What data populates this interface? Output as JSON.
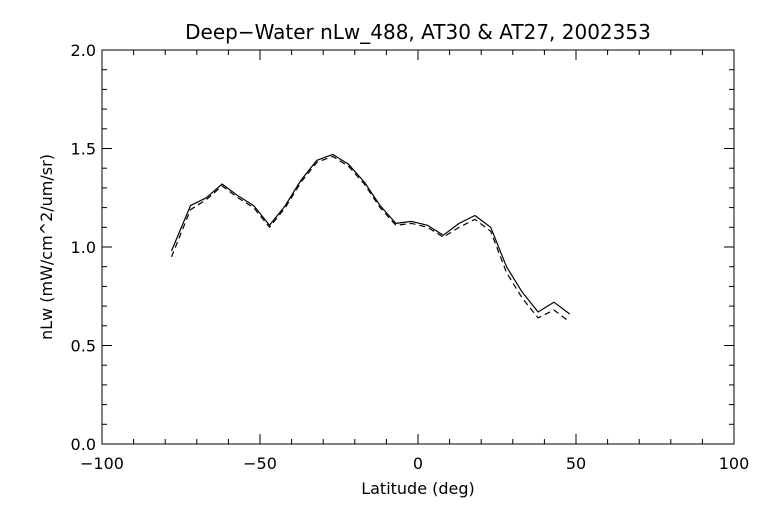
{
  "chart_data": {
    "type": "line",
    "title": "Deep−Water nLw_488, AT30 & AT27, 2002353",
    "xlabel": "Latitude (deg)",
    "ylabel": "nLw (mW/cm^2/um/sr)",
    "xlim": [
      -100,
      100
    ],
    "ylim": [
      0.0,
      2.0
    ],
    "x_ticks": [
      -100,
      -50,
      0,
      50,
      100
    ],
    "x_tick_labels": [
      "−100",
      "−50",
      "0",
      "50",
      "100"
    ],
    "y_ticks": [
      0.0,
      0.5,
      1.0,
      1.5,
      2.0
    ],
    "y_tick_labels": [
      "0.0",
      "0.5",
      "1.0",
      "1.5",
      "2.0"
    ],
    "grid": false,
    "series": [
      {
        "style": "solid",
        "x": [
          -78,
          -72,
          -67,
          -62,
          -57,
          -52,
          -47,
          -42,
          -37,
          -32,
          -27,
          -22,
          -17,
          -12,
          -7,
          -2,
          3,
          8,
          13,
          18,
          23,
          28,
          33,
          38,
          43,
          48
        ],
        "y": [
          0.98,
          1.21,
          1.25,
          1.32,
          1.26,
          1.21,
          1.11,
          1.21,
          1.34,
          1.44,
          1.47,
          1.42,
          1.33,
          1.21,
          1.12,
          1.13,
          1.11,
          1.06,
          1.12,
          1.16,
          1.1,
          0.9,
          0.77,
          0.67,
          0.72,
          0.66
        ]
      },
      {
        "style": "dashed",
        "x": [
          -78,
          -72,
          -67,
          -62,
          -57,
          -52,
          -47,
          -42,
          -37,
          -32,
          -27,
          -22,
          -17,
          -12,
          -7,
          -2,
          3,
          8,
          13,
          18,
          23,
          28,
          33,
          38,
          43,
          48
        ],
        "y": [
          0.95,
          1.19,
          1.24,
          1.31,
          1.25,
          1.2,
          1.1,
          1.2,
          1.33,
          1.43,
          1.46,
          1.41,
          1.32,
          1.2,
          1.11,
          1.12,
          1.1,
          1.05,
          1.1,
          1.14,
          1.08,
          0.87,
          0.74,
          0.64,
          0.68,
          0.62
        ]
      }
    ]
  }
}
